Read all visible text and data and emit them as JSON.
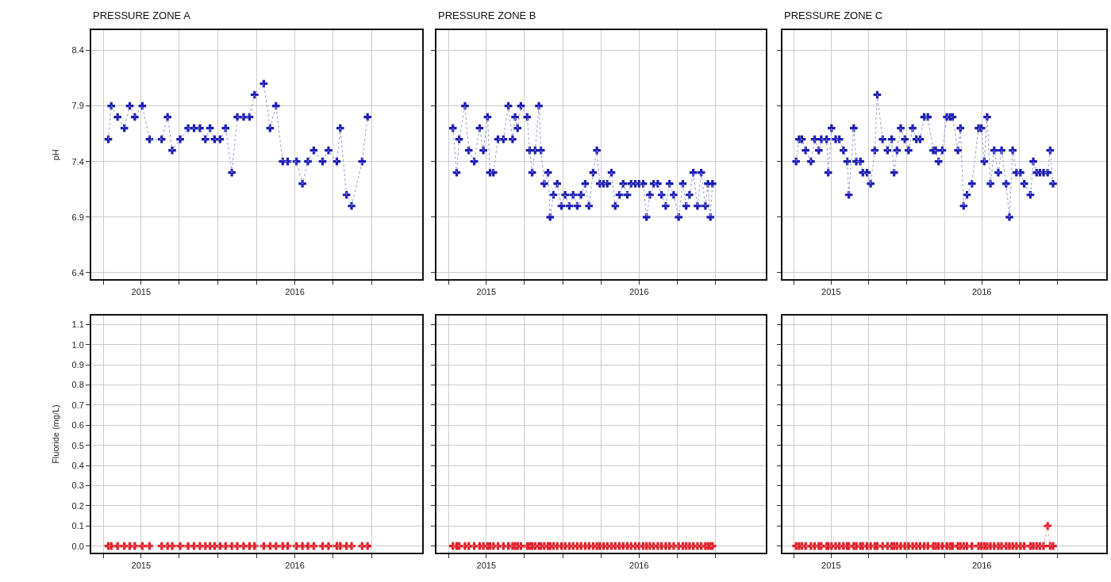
{
  "chart_data": [
    {
      "type": "line",
      "title": "PRESSURE ZONE A",
      "ylabel": "pH",
      "grid": true,
      "marker": "cross",
      "line_style": "dotted",
      "xlim": [
        "2014-12-03",
        "2017-01-29"
      ],
      "ylim": [
        6.34,
        8.58
      ],
      "yticks": [
        6.4,
        6.9,
        7.4,
        7.9,
        8.4
      ],
      "xticks": [
        {
          "value": "2015-01-01",
          "label": null
        },
        {
          "value": "2015-04-01",
          "label": "2015"
        },
        {
          "value": "2015-07-01",
          "label": null
        },
        {
          "value": "2015-10-01",
          "label": null
        },
        {
          "value": "2016-01-01",
          "label": null
        },
        {
          "value": "2016-04-01",
          "label": "2016"
        },
        {
          "value": "2016-07-01",
          "label": null
        },
        {
          "value": "2016-10-01",
          "label": null
        }
      ],
      "x": [
        "2015-01-13",
        "2015-01-20",
        "2015-02-04",
        "2015-02-20",
        "2015-03-05",
        "2015-03-17",
        "2015-04-04",
        "2015-04-21",
        "2015-05-20",
        "2015-06-03",
        "2015-06-14",
        "2015-07-03",
        "2015-07-22",
        "2015-08-05",
        "2015-08-19",
        "2015-09-01",
        "2015-09-12",
        "2015-09-23",
        "2015-10-06",
        "2015-10-19",
        "2015-11-03",
        "2015-11-16",
        "2015-12-01",
        "2015-12-15",
        "2015-12-27",
        "2016-01-18",
        "2016-02-02",
        "2016-02-16",
        "2016-03-03",
        "2016-03-15",
        "2016-04-05",
        "2016-04-19",
        "2016-05-02",
        "2016-05-16",
        "2016-06-06",
        "2016-06-20",
        "2016-07-10",
        "2016-07-18",
        "2016-08-02",
        "2016-08-14",
        "2016-09-08",
        "2016-09-21"
      ],
      "series": [
        {
          "color": "#1c1cb4",
          "values": [
            7.6,
            7.9,
            7.8,
            7.7,
            7.9,
            7.8,
            7.9,
            7.6,
            7.6,
            7.8,
            7.5,
            7.6,
            7.7,
            7.7,
            7.7,
            7.6,
            7.7,
            7.6,
            7.6,
            7.7,
            7.3,
            7.8,
            7.8,
            7.8,
            8.0,
            8.1,
            7.7,
            7.9,
            7.4,
            7.4,
            7.4,
            7.2,
            7.4,
            7.5,
            7.4,
            7.5,
            7.4,
            7.7,
            7.1,
            7.0,
            7.4,
            7.8
          ]
        }
      ]
    },
    {
      "type": "line",
      "title": "PRESSURE ZONE B",
      "grid": true,
      "marker": "cross",
      "line_style": "dotted",
      "tick_labels": "x",
      "xlim": [
        "2014-12-03",
        "2017-01-29"
      ],
      "ylim": [
        6.34,
        8.58
      ],
      "yticks": [
        6.4,
        6.9,
        7.4,
        7.9,
        8.4
      ],
      "xticks": [
        {
          "value": "2015-01-01",
          "label": null
        },
        {
          "value": "2015-04-01",
          "label": "2015"
        },
        {
          "value": "2015-07-01",
          "label": null
        },
        {
          "value": "2015-10-01",
          "label": null
        },
        {
          "value": "2016-01-01",
          "label": null
        },
        {
          "value": "2016-04-01",
          "label": "2016"
        },
        {
          "value": "2016-07-01",
          "label": null
        },
        {
          "value": "2016-10-01",
          "label": null
        }
      ],
      "x": [
        "2015-01-11",
        "2015-01-20",
        "2015-01-26",
        "2015-02-09",
        "2015-02-18",
        "2015-03-03",
        "2015-03-16",
        "2015-03-25",
        "2015-04-04",
        "2015-04-10",
        "2015-04-18",
        "2015-04-29",
        "2015-05-12",
        "2015-05-24",
        "2015-06-03",
        "2015-06-09",
        "2015-06-15",
        "2015-06-23",
        "2015-07-08",
        "2015-07-14",
        "2015-07-20",
        "2015-07-27",
        "2015-08-05",
        "2015-08-10",
        "2015-08-18",
        "2015-08-27",
        "2015-09-01",
        "2015-09-09",
        "2015-09-18",
        "2015-09-28",
        "2015-10-07",
        "2015-10-17",
        "2015-10-26",
        "2015-11-05",
        "2015-11-14",
        "2015-11-24",
        "2015-12-03",
        "2015-12-13",
        "2015-12-22",
        "2015-12-29",
        "2016-01-07",
        "2016-01-16",
        "2016-01-26",
        "2016-02-04",
        "2016-02-14",
        "2016-02-23",
        "2016-03-04",
        "2016-03-13",
        "2016-03-23",
        "2016-04-01",
        "2016-04-11",
        "2016-04-19",
        "2016-04-27",
        "2016-05-06",
        "2016-05-16",
        "2016-05-25",
        "2016-06-04",
        "2016-06-13",
        "2016-06-23",
        "2016-07-05",
        "2016-07-15",
        "2016-07-23",
        "2016-07-31",
        "2016-08-09",
        "2016-08-19",
        "2016-08-28",
        "2016-09-07",
        "2016-09-13",
        "2016-09-19",
        "2016-09-24"
      ],
      "series": [
        {
          "color": "#1c1cb4",
          "values": [
            7.7,
            7.3,
            7.6,
            7.9,
            7.5,
            7.4,
            7.7,
            7.5,
            7.8,
            7.3,
            7.3,
            7.6,
            7.6,
            7.9,
            7.6,
            7.8,
            7.7,
            7.9,
            7.8,
            7.5,
            7.3,
            7.5,
            7.9,
            7.5,
            7.2,
            7.3,
            6.9,
            7.1,
            7.2,
            7.0,
            7.1,
            7.0,
            7.1,
            7.0,
            7.1,
            7.2,
            7.0,
            7.3,
            7.5,
            7.2,
            7.2,
            7.2,
            7.3,
            7.0,
            7.1,
            7.2,
            7.1,
            7.2,
            7.2,
            7.2,
            7.2,
            6.9,
            7.1,
            7.2,
            7.2,
            7.1,
            7.0,
            7.2,
            7.1,
            6.9,
            7.2,
            7.0,
            7.1,
            7.3,
            7.0,
            7.3,
            7.0,
            7.2,
            6.9,
            7.2
          ]
        }
      ]
    },
    {
      "type": "line",
      "title": "PRESSURE ZONE C",
      "grid": true,
      "marker": "cross",
      "line_style": "dotted",
      "tick_labels": "x",
      "xlim": [
        "2014-12-03",
        "2017-01-29"
      ],
      "ylim": [
        6.34,
        8.58
      ],
      "yticks": [
        6.4,
        6.9,
        7.4,
        7.9,
        8.4
      ],
      "xticks": [
        {
          "value": "2015-01-01",
          "label": null
        },
        {
          "value": "2015-04-01",
          "label": "2015"
        },
        {
          "value": "2015-07-01",
          "label": null
        },
        {
          "value": "2015-10-01",
          "label": null
        },
        {
          "value": "2016-01-01",
          "label": null
        },
        {
          "value": "2016-04-01",
          "label": "2016"
        },
        {
          "value": "2016-07-01",
          "label": null
        },
        {
          "value": "2016-10-01",
          "label": null
        }
      ],
      "x": [
        "2015-01-06",
        "2015-01-13",
        "2015-01-20",
        "2015-01-29",
        "2015-02-11",
        "2015-02-20",
        "2015-03-02",
        "2015-03-08",
        "2015-03-21",
        "2015-03-25",
        "2015-04-02",
        "2015-04-12",
        "2015-04-21",
        "2015-05-01",
        "2015-05-10",
        "2015-05-14",
        "2015-05-26",
        "2015-06-01",
        "2015-06-11",
        "2015-06-17",
        "2015-06-27",
        "2015-07-06",
        "2015-07-16",
        "2015-07-22",
        "2015-08-04",
        "2015-08-16",
        "2015-08-26",
        "2015-09-01",
        "2015-09-08",
        "2015-09-17",
        "2015-09-27",
        "2015-10-06",
        "2015-10-16",
        "2015-10-25",
        "2015-11-03",
        "2015-11-13",
        "2015-11-22",
        "2015-12-05",
        "2015-12-11",
        "2015-12-18",
        "2015-12-27",
        "2016-01-07",
        "2016-01-15",
        "2016-01-21",
        "2016-02-03",
        "2016-02-09",
        "2016-02-17",
        "2016-02-25",
        "2016-03-08",
        "2016-03-24",
        "2016-03-31",
        "2016-04-07",
        "2016-04-14",
        "2016-04-22",
        "2016-05-01",
        "2016-05-11",
        "2016-05-19",
        "2016-05-30",
        "2016-06-07",
        "2016-06-15",
        "2016-06-24",
        "2016-07-04",
        "2016-07-13",
        "2016-07-28",
        "2016-08-04",
        "2016-08-12",
        "2016-08-20",
        "2016-08-29",
        "2016-09-08",
        "2016-09-14",
        "2016-09-21"
      ],
      "series": [
        {
          "color": "#1c1cb4",
          "values": [
            7.4,
            7.6,
            7.6,
            7.5,
            7.4,
            7.6,
            7.5,
            7.6,
            7.6,
            7.3,
            7.7,
            7.6,
            7.6,
            7.5,
            7.4,
            7.1,
            7.7,
            7.4,
            7.4,
            7.3,
            7.3,
            7.2,
            7.5,
            8.0,
            7.6,
            7.5,
            7.6,
            7.3,
            7.5,
            7.7,
            7.6,
            7.5,
            7.7,
            7.6,
            7.6,
            7.8,
            7.8,
            7.5,
            7.5,
            7.4,
            7.5,
            7.8,
            7.8,
            7.8,
            7.5,
            7.7,
            7.0,
            7.1,
            7.2,
            7.7,
            7.7,
            7.4,
            7.8,
            7.2,
            7.5,
            7.3,
            7.5,
            7.2,
            6.9,
            7.5,
            7.3,
            7.3,
            7.2,
            7.1,
            7.4,
            7.3,
            7.3,
            7.3,
            7.3,
            7.5,
            7.2
          ]
        }
      ]
    },
    {
      "type": "line",
      "ylabel": "Fluoride (mg/L)",
      "grid": true,
      "marker": "cross",
      "line_style": "dotted",
      "xlim": [
        "2014-12-03",
        "2017-01-29"
      ],
      "ylim": [
        -0.034,
        1.145
      ],
      "yticks": [
        {
          "value": 0,
          "label": "0.0"
        },
        0.1,
        0.2,
        0.3,
        0.4,
        0.5,
        0.6,
        0.7,
        0.8,
        0.9,
        {
          "value": 1,
          "label": "1.0"
        },
        1.1
      ],
      "xticks": [
        {
          "value": "2015-01-01",
          "label": null
        },
        {
          "value": "2015-04-01",
          "label": "2015"
        },
        {
          "value": "2015-07-01",
          "label": null
        },
        {
          "value": "2015-10-01",
          "label": null
        },
        {
          "value": "2016-01-01",
          "label": null
        },
        {
          "value": "2016-04-01",
          "label": "2016"
        },
        {
          "value": "2016-07-01",
          "label": null
        },
        {
          "value": "2016-10-01",
          "label": null
        }
      ],
      "x": [
        "2015-01-13",
        "2015-01-20",
        "2015-02-04",
        "2015-02-20",
        "2015-03-05",
        "2015-03-17",
        "2015-04-04",
        "2015-04-21",
        "2015-05-20",
        "2015-06-03",
        "2015-06-14",
        "2015-07-03",
        "2015-07-22",
        "2015-08-05",
        "2015-08-19",
        "2015-09-01",
        "2015-09-12",
        "2015-09-23",
        "2015-10-06",
        "2015-10-19",
        "2015-11-03",
        "2015-11-16",
        "2015-12-01",
        "2015-12-15",
        "2015-12-27",
        "2016-01-18",
        "2016-02-02",
        "2016-02-16",
        "2016-03-03",
        "2016-03-15",
        "2016-04-05",
        "2016-04-19",
        "2016-05-02",
        "2016-05-16",
        "2016-06-06",
        "2016-06-20",
        "2016-07-10",
        "2016-07-18",
        "2016-08-02",
        "2016-08-14",
        "2016-09-08",
        "2016-09-21"
      ],
      "series": [
        {
          "color": "#e0202a",
          "values": [
            0,
            0,
            0,
            0,
            0,
            0,
            0,
            0,
            0,
            0,
            0,
            0,
            0,
            0,
            0,
            0,
            0,
            0,
            0,
            0,
            0,
            0,
            0,
            0,
            0,
            0,
            0,
            0,
            0,
            0,
            0,
            0,
            0,
            0,
            0,
            0,
            0,
            0,
            0,
            0,
            0,
            0
          ]
        }
      ]
    },
    {
      "type": "line",
      "grid": true,
      "marker": "cross",
      "line_style": "dotted",
      "tick_labels": "x",
      "xlim": [
        "2014-12-03",
        "2017-01-29"
      ],
      "ylim": [
        -0.034,
        1.145
      ],
      "yticks": [
        0,
        0.1,
        0.2,
        0.3,
        0.4,
        0.5,
        0.6,
        0.7,
        0.8,
        0.9,
        1,
        1.1
      ],
      "xticks": [
        {
          "value": "2015-01-01",
          "label": null
        },
        {
          "value": "2015-04-01",
          "label": "2015"
        },
        {
          "value": "2015-07-01",
          "label": null
        },
        {
          "value": "2015-10-01",
          "label": null
        },
        {
          "value": "2016-01-01",
          "label": null
        },
        {
          "value": "2016-04-01",
          "label": "2016"
        },
        {
          "value": "2016-07-01",
          "label": null
        },
        {
          "value": "2016-10-01",
          "label": null
        }
      ],
      "x": [
        "2015-01-11",
        "2015-01-20",
        "2015-01-26",
        "2015-02-09",
        "2015-02-18",
        "2015-03-03",
        "2015-03-16",
        "2015-03-25",
        "2015-04-04",
        "2015-04-10",
        "2015-04-18",
        "2015-04-29",
        "2015-05-12",
        "2015-05-24",
        "2015-06-03",
        "2015-06-09",
        "2015-06-15",
        "2015-06-23",
        "2015-07-08",
        "2015-07-14",
        "2015-07-20",
        "2015-07-27",
        "2015-08-05",
        "2015-08-10",
        "2015-08-18",
        "2015-08-27",
        "2015-09-01",
        "2015-09-09",
        "2015-09-18",
        "2015-09-28",
        "2015-10-07",
        "2015-10-17",
        "2015-10-26",
        "2015-11-05",
        "2015-11-14",
        "2015-11-24",
        "2015-12-03",
        "2015-12-13",
        "2015-12-22",
        "2015-12-29",
        "2016-01-07",
        "2016-01-16",
        "2016-01-26",
        "2016-02-04",
        "2016-02-14",
        "2016-02-23",
        "2016-03-04",
        "2016-03-13",
        "2016-03-23",
        "2016-04-01",
        "2016-04-11",
        "2016-04-19",
        "2016-04-27",
        "2016-05-06",
        "2016-05-16",
        "2016-05-25",
        "2016-06-04",
        "2016-06-13",
        "2016-06-23",
        "2016-07-05",
        "2016-07-15",
        "2016-07-23",
        "2016-07-31",
        "2016-08-09",
        "2016-08-19",
        "2016-08-28",
        "2016-09-07",
        "2016-09-13",
        "2016-09-19",
        "2016-09-24"
      ],
      "series": [
        {
          "color": "#e0202a",
          "values": [
            0,
            0,
            0,
            0,
            0,
            0,
            0,
            0,
            0,
            0,
            0,
            0,
            0,
            0,
            0,
            0,
            0,
            0,
            0,
            0,
            0,
            0,
            0,
            0,
            0,
            0,
            0,
            0,
            0,
            0,
            0,
            0,
            0,
            0,
            0,
            0,
            0,
            0,
            0,
            0,
            0,
            0,
            0,
            0,
            0,
            0,
            0,
            0,
            0,
            0,
            0,
            0,
            0,
            0,
            0,
            0,
            0,
            0,
            0,
            0,
            0,
            0,
            0,
            0,
            0,
            0,
            0,
            0,
            0,
            0
          ]
        }
      ]
    },
    {
      "type": "line",
      "grid": true,
      "marker": "cross",
      "line_style": "dotted",
      "tick_labels": "x",
      "xlim": [
        "2014-12-03",
        "2017-01-29"
      ],
      "ylim": [
        -0.034,
        1.145
      ],
      "yticks": [
        0,
        0.1,
        0.2,
        0.3,
        0.4,
        0.5,
        0.6,
        0.7,
        0.8,
        0.9,
        1,
        1.1
      ],
      "xticks": [
        {
          "value": "2015-01-01",
          "label": null
        },
        {
          "value": "2015-04-01",
          "label": "2015"
        },
        {
          "value": "2015-07-01",
          "label": null
        },
        {
          "value": "2015-10-01",
          "label": null
        },
        {
          "value": "2016-01-01",
          "label": null
        },
        {
          "value": "2016-04-01",
          "label": "2016"
        },
        {
          "value": "2016-07-01",
          "label": null
        },
        {
          "value": "2016-10-01",
          "label": null
        }
      ],
      "x": [
        "2015-01-06",
        "2015-01-13",
        "2015-01-20",
        "2015-01-29",
        "2015-02-11",
        "2015-02-20",
        "2015-03-02",
        "2015-03-08",
        "2015-03-21",
        "2015-03-25",
        "2015-04-02",
        "2015-04-12",
        "2015-04-21",
        "2015-05-01",
        "2015-05-10",
        "2015-05-14",
        "2015-05-26",
        "2015-06-01",
        "2015-06-11",
        "2015-06-17",
        "2015-06-27",
        "2015-07-06",
        "2015-07-16",
        "2015-07-22",
        "2015-08-04",
        "2015-08-16",
        "2015-08-26",
        "2015-09-01",
        "2015-09-08",
        "2015-09-17",
        "2015-09-27",
        "2015-10-06",
        "2015-10-16",
        "2015-10-25",
        "2015-11-03",
        "2015-11-13",
        "2015-11-22",
        "2015-12-05",
        "2015-12-11",
        "2015-12-18",
        "2015-12-27",
        "2016-01-07",
        "2016-01-15",
        "2016-01-21",
        "2016-02-03",
        "2016-02-09",
        "2016-02-17",
        "2016-02-25",
        "2016-03-08",
        "2016-03-24",
        "2016-03-31",
        "2016-04-07",
        "2016-04-14",
        "2016-04-22",
        "2016-05-01",
        "2016-05-11",
        "2016-05-19",
        "2016-05-30",
        "2016-06-07",
        "2016-06-15",
        "2016-06-24",
        "2016-07-04",
        "2016-07-13",
        "2016-07-28",
        "2016-08-04",
        "2016-08-12",
        "2016-08-20",
        "2016-08-29",
        "2016-09-08",
        "2016-09-14",
        "2016-09-21"
      ],
      "series": [
        {
          "color": "#e0202a",
          "values": [
            0,
            0,
            0,
            0,
            0,
            0,
            0,
            0,
            0,
            0,
            0,
            0,
            0,
            0,
            0,
            0,
            0,
            0,
            0,
            0,
            0,
            0,
            0,
            0,
            0,
            0,
            0,
            0,
            0,
            0,
            0,
            0,
            0,
            0,
            0,
            0,
            0,
            0,
            0,
            0,
            0,
            0,
            0,
            0,
            0,
            0,
            0,
            0,
            0,
            0,
            0,
            0,
            0,
            0,
            0,
            0,
            0,
            0,
            0,
            0,
            0,
            0,
            0,
            0,
            0,
            0,
            0,
            0,
            0.1,
            0,
            0
          ]
        }
      ]
    }
  ]
}
